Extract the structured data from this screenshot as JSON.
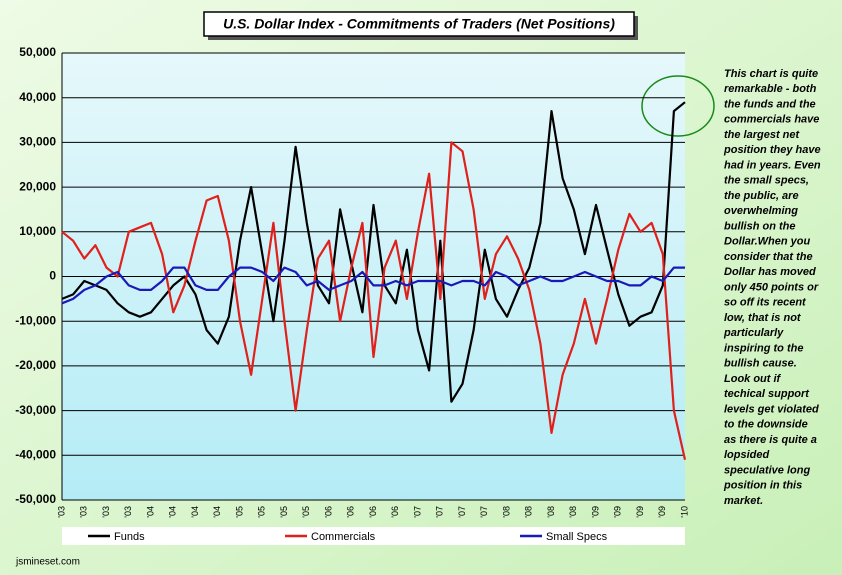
{
  "chart_data": {
    "type": "line",
    "title": "U.S. Dollar Index  - Commitments of Traders (Net Positions)",
    "categories": [
      "'03",
      null,
      "'03",
      null,
      "'03",
      null,
      "'03",
      null,
      "'04",
      null,
      "'04",
      null,
      "'04",
      null,
      "'04",
      null,
      "'05",
      null,
      "'05",
      null,
      "'05",
      null,
      "'05",
      null,
      "'06",
      null,
      "'06",
      null,
      "'06",
      null,
      "'06",
      null,
      "'07",
      null,
      "'07",
      null,
      "'07",
      null,
      "'07",
      null,
      "'08",
      null,
      "'08",
      null,
      "'08",
      null,
      "'08",
      null,
      "'09",
      null,
      "'09",
      null,
      "'09",
      null,
      "'09",
      null,
      "'10"
    ],
    "series": [
      {
        "name": "Funds",
        "color": "#000000",
        "values": [
          -5000,
          -4000,
          -1000,
          -2000,
          -3000,
          -6000,
          -8000,
          -9000,
          -8000,
          -5000,
          -2000,
          0,
          -4000,
          -12000,
          -15000,
          -9000,
          8000,
          20000,
          5000,
          -10000,
          8000,
          29000,
          12000,
          -2000,
          -6000,
          15000,
          3000,
          -8000,
          16000,
          -2000,
          -6000,
          6000,
          -12000,
          -21000,
          8000,
          -28000,
          -24000,
          -12000,
          6000,
          -5000,
          -9000,
          -3000,
          2000,
          12000,
          37000,
          22000,
          15000,
          5000,
          16000,
          6000,
          -4000,
          -11000,
          -9000,
          -8000,
          -2000,
          37000,
          39000
        ]
      },
      {
        "name": "Commercials",
        "color": "#e0201b",
        "values": [
          10000,
          8000,
          4000,
          7000,
          2000,
          0,
          10000,
          11000,
          12000,
          5000,
          -8000,
          -2000,
          8000,
          17000,
          18000,
          8000,
          -10000,
          -22000,
          -5000,
          12000,
          -10000,
          -30000,
          -12000,
          4000,
          8000,
          -10000,
          2000,
          12000,
          -18000,
          2000,
          8000,
          -5000,
          10000,
          23000,
          -5000,
          30000,
          28000,
          15000,
          -5000,
          5000,
          9000,
          4000,
          -3000,
          -15000,
          -35000,
          -22000,
          -15000,
          -5000,
          -15000,
          -5000,
          6000,
          14000,
          10000,
          12000,
          5000,
          -30000,
          -41000
        ]
      },
      {
        "name": "Small Specs",
        "color": "#1a1ab8",
        "values": [
          -6000,
          -5000,
          -3000,
          -2000,
          0,
          1000,
          -2000,
          -3000,
          -3000,
          -1000,
          2000,
          2000,
          -2000,
          -3000,
          -3000,
          0,
          2000,
          2000,
          1000,
          -1000,
          2000,
          1000,
          -2000,
          -1000,
          -3000,
          -2000,
          -1000,
          1000,
          -2000,
          -2000,
          -1000,
          -2000,
          -1000,
          -1000,
          -1000,
          -2000,
          -1000,
          -1000,
          -2000,
          1000,
          0,
          -2000,
          -1000,
          0,
          -1000,
          -1000,
          0,
          1000,
          0,
          -1000,
          -1000,
          -2000,
          -2000,
          0,
          -1000,
          2000,
          2000
        ]
      }
    ],
    "ylim": [
      -50000,
      50000
    ],
    "yticks": [
      {
        "value": -50000,
        "label": "-50,000"
      },
      {
        "value": -40000,
        "label": "-40,000"
      },
      {
        "value": -30000,
        "label": "-30,000"
      },
      {
        "value": -20000,
        "label": "-20,000"
      },
      {
        "value": -10000,
        "label": "-10,000"
      },
      0,
      {
        "value": 10000,
        "label": "10,000"
      },
      {
        "value": 20000,
        "label": "20,000"
      },
      {
        "value": 30000,
        "label": "30,000"
      },
      {
        "value": 40000,
        "label": "40,000"
      },
      {
        "value": 50000,
        "label": "50,000"
      }
    ],
    "grid": true,
    "annotation": [
      "This chart is quite",
      "remarkable - both",
      "the funds and the",
      "commercials have",
      "the largest net",
      "position they have",
      "had in years. Even",
      "the small specs,",
      "the public, are",
      "overwhelming",
      "bullish on the",
      "Dollar.When you",
      "consider that the",
      "Dollar has moved",
      "only 450 points or",
      "so off its recent",
      "low, that is not",
      "particularly",
      "inspiring to the",
      "bullish cause.",
      "Look out if",
      "techical support",
      "levels get violated",
      "to the downside",
      "as there is quite a",
      "lopsided",
      "speculative long",
      "position in this",
      "market."
    ],
    "source": "jsmineset.com"
  }
}
